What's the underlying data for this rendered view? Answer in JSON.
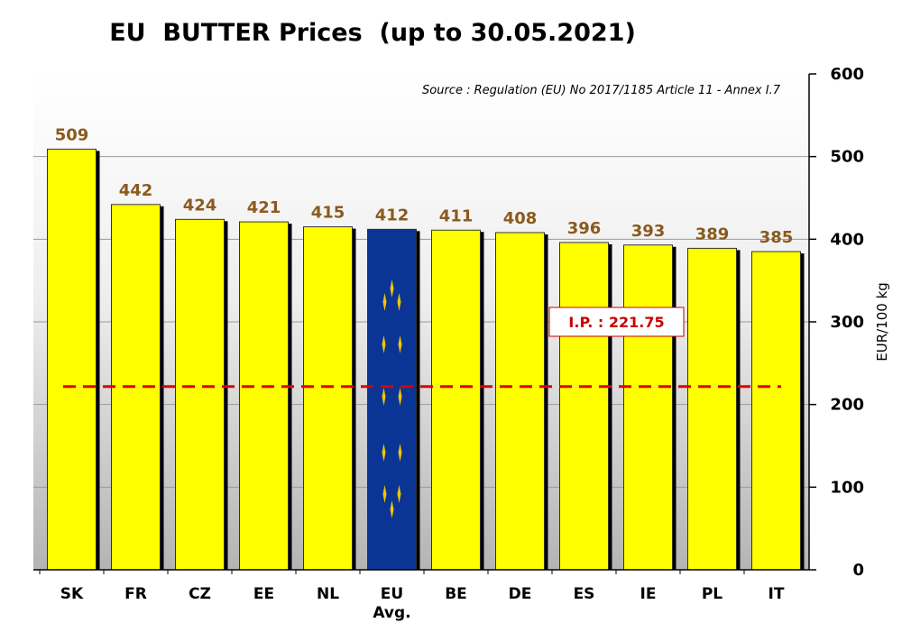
{
  "chart_data": {
    "type": "bar",
    "title": "EU  BUTTER Prices  (up to 30.05.2021)",
    "source": "Source : Regulation (EU) No 2017/1185 Article 11 - Annex I.7",
    "ylabel": "EUR/100 kg",
    "xlabel": "",
    "ylim": [
      0,
      600
    ],
    "yticks": [
      "0",
      "100",
      "200",
      "300",
      "400",
      "500",
      "600"
    ],
    "y_axis_side": "right",
    "grid": true,
    "categories": [
      "SK",
      "FR",
      "CZ",
      "EE",
      "NL",
      "EU Avg.",
      "BE",
      "DE",
      "ES",
      "IE",
      "PL",
      "IT"
    ],
    "values": [
      509,
      442,
      424,
      421,
      415,
      412,
      411,
      408,
      396,
      393,
      389,
      385
    ],
    "value_labels": [
      "509",
      "442",
      "424",
      "421",
      "415",
      "412",
      "411",
      "408",
      "396",
      "393",
      "389",
      "385"
    ],
    "highlight_category": "EU Avg.",
    "reference_line": {
      "label": "I.P. : 221.75",
      "value": 221.75
    },
    "colors": {
      "bar": "#ffff00",
      "highlight_bar": "#0a3594",
      "value_label": "#8a5a1e",
      "reference_line": "#dd0000"
    }
  }
}
